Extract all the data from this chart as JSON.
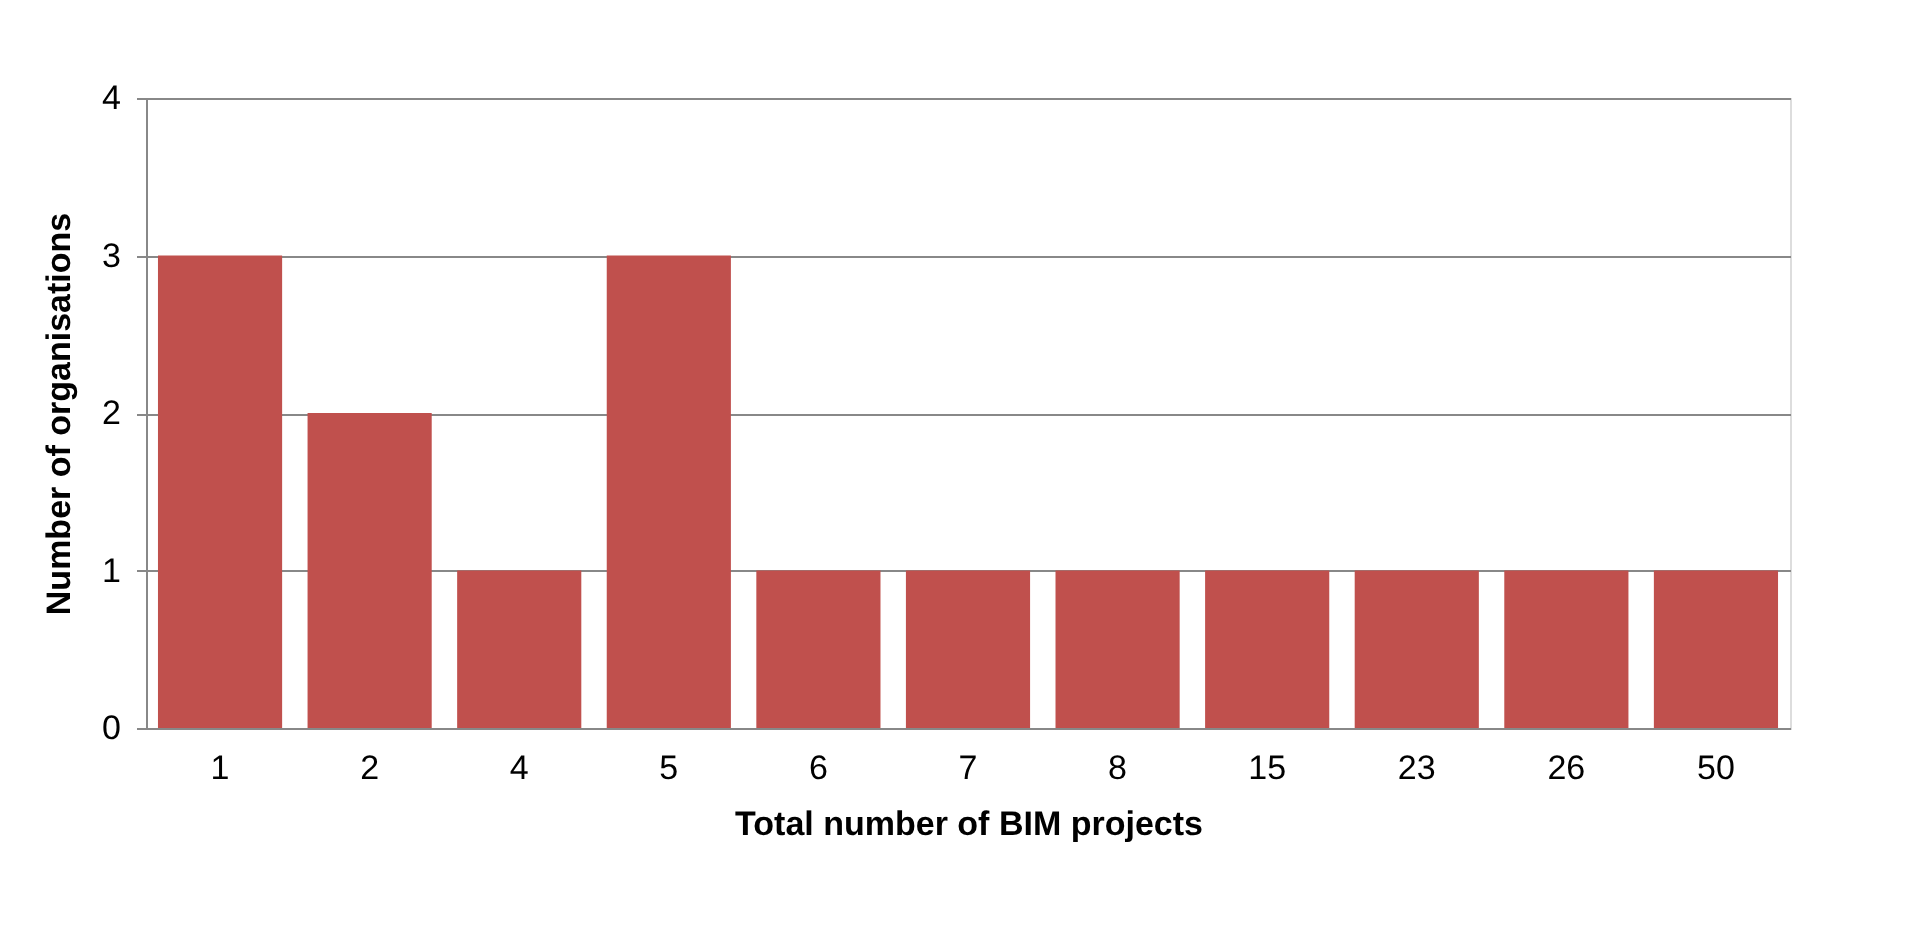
{
  "chart_data": {
    "type": "bar",
    "xlabel": "Total number of BIM projects",
    "ylabel": "Number of organisations",
    "categories": [
      "1",
      "2",
      "4",
      "5",
      "6",
      "7",
      "8",
      "15",
      "23",
      "26",
      "50"
    ],
    "values": [
      3,
      2,
      1,
      3,
      1,
      1,
      1,
      1,
      1,
      1,
      1
    ],
    "color": "#c0504d",
    "ylim": [
      0,
      4
    ],
    "yticks": [
      0,
      1,
      2,
      3,
      4
    ],
    "grid": "y"
  }
}
